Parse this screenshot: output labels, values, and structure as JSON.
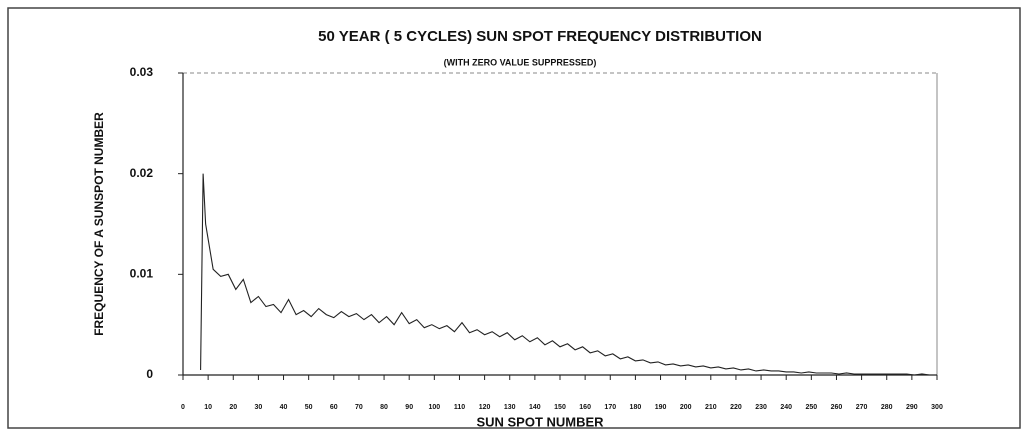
{
  "chart_data": {
    "type": "line",
    "title": "50 YEAR ( 5 CYCLES) SUN SPOT FREQUENCY DISTRIBUTION",
    "subtitle": "(WITH ZERO VALUE SUPPRESSED)",
    "xlabel": "SUN SPOT NUMBER",
    "ylabel": "FREQUENCY OF A SUNSPOT NUMBER",
    "x": [
      7,
      8,
      9,
      12,
      15,
      18,
      21,
      24,
      27,
      30,
      33,
      36,
      39,
      42,
      45,
      48,
      51,
      54,
      57,
      60,
      63,
      66,
      69,
      72,
      75,
      78,
      81,
      84,
      87,
      90,
      93,
      96,
      99,
      102,
      105,
      108,
      111,
      114,
      117,
      120,
      123,
      126,
      129,
      132,
      135,
      138,
      141,
      144,
      147,
      150,
      153,
      156,
      159,
      162,
      165,
      168,
      171,
      174,
      177,
      180,
      183,
      186,
      189,
      192,
      195,
      198,
      201,
      204,
      207,
      210,
      213,
      216,
      219,
      222,
      225,
      228,
      231,
      234,
      237,
      240,
      243,
      246,
      249,
      252,
      255,
      258,
      261,
      264,
      267,
      270,
      273,
      276,
      279,
      282,
      285,
      288,
      291,
      294,
      297,
      300
    ],
    "series": [
      {
        "name": "frequency",
        "color": "#222222",
        "values": [
          0.0005,
          0.02,
          0.015,
          0.0105,
          0.0098,
          0.01,
          0.0085,
          0.0095,
          0.0072,
          0.0078,
          0.0068,
          0.007,
          0.0062,
          0.0075,
          0.006,
          0.0064,
          0.0058,
          0.0066,
          0.006,
          0.0057,
          0.0063,
          0.0058,
          0.0061,
          0.0055,
          0.006,
          0.0052,
          0.0058,
          0.005,
          0.0062,
          0.0051,
          0.0055,
          0.0047,
          0.005,
          0.0046,
          0.0049,
          0.0043,
          0.0052,
          0.0042,
          0.0045,
          0.004,
          0.0043,
          0.0038,
          0.0042,
          0.0035,
          0.0039,
          0.0033,
          0.0037,
          0.003,
          0.0034,
          0.0028,
          0.0031,
          0.0025,
          0.0028,
          0.0022,
          0.0024,
          0.0019,
          0.0021,
          0.0016,
          0.0018,
          0.0014,
          0.0015,
          0.0012,
          0.0013,
          0.001,
          0.0011,
          0.0009,
          0.001,
          0.0008,
          0.0009,
          0.0007,
          0.0008,
          0.0006,
          0.0007,
          0.0005,
          0.0006,
          0.0004,
          0.0005,
          0.0004,
          0.0004,
          0.0003,
          0.0003,
          0.0002,
          0.0003,
          0.0002,
          0.0002,
          0.0002,
          0.0001,
          0.0002,
          0.0001,
          0.0001,
          0.0001,
          0.0001,
          0.0001,
          0.0001,
          0.0001,
          0.0001,
          0,
          0.0001,
          0,
          0
        ]
      }
    ],
    "xlim": [
      0,
      300
    ],
    "xticks": [
      0,
      10,
      20,
      30,
      40,
      50,
      60,
      70,
      80,
      90,
      100,
      110,
      120,
      130,
      140,
      150,
      160,
      170,
      180,
      190,
      200,
      210,
      220,
      230,
      240,
      250,
      260,
      270,
      280,
      290,
      300
    ],
    "ylim": [
      0,
      0.03
    ],
    "yticks": [
      0,
      0.01,
      0.02,
      0.03
    ],
    "grid": false
  }
}
